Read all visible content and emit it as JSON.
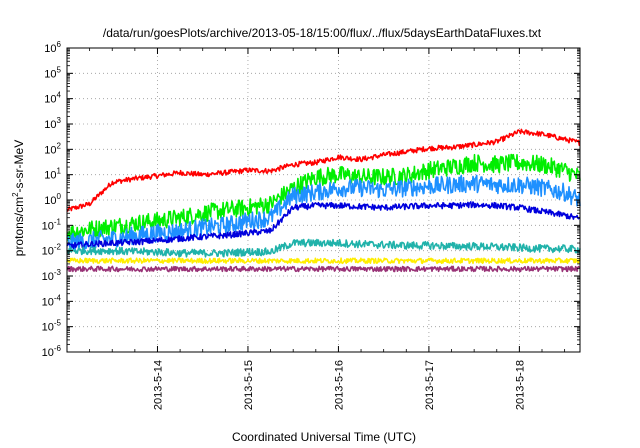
{
  "chart_data": {
    "type": "line",
    "title": "/data/run/goesPlots/archive/2013-05-18/15:00/flux/../flux/5daysEarthDataFluxes.txt",
    "xlabel": "Coordinated Universal Time (UTC)",
    "ylabel_main": "protons/cm",
    "ylabel_sup": "2",
    "ylabel_rest": "-s-sr-MeV",
    "x_ticks": [
      "2013-5-14",
      "2013-5-15",
      "2013-5-16",
      "2013-5-17",
      "2013-5-18"
    ],
    "x_tick_positions_days": [
      1,
      2,
      3,
      4,
      5
    ],
    "xlim_days": [
      0,
      5.67
    ],
    "y_scale": "log",
    "ylim": [
      1e-06,
      1000000.0
    ],
    "y_tick_exponents": [
      -6,
      -5,
      -4,
      -3,
      -2,
      -1,
      0,
      1,
      2,
      3,
      4,
      5,
      6
    ],
    "grid": true,
    "legend": "none",
    "x_days": [
      0,
      0.25,
      0.5,
      0.75,
      1.0,
      1.25,
      1.5,
      1.75,
      2.0,
      2.25,
      2.5,
      2.75,
      3.0,
      3.25,
      3.5,
      3.75,
      4.0,
      4.25,
      4.5,
      4.75,
      5.0,
      5.25,
      5.5,
      5.67
    ],
    "series": [
      {
        "color": "#ff0000",
        "noise": 0.1,
        "values": [
          0.4,
          0.7,
          5,
          7,
          9,
          12,
          10,
          12,
          15,
          14,
          25,
          30,
          50,
          40,
          60,
          80,
          110,
          120,
          150,
          200,
          500,
          400,
          250,
          180
        ]
      },
      {
        "color": "#00ee00",
        "noise": 0.35,
        "values": [
          0.05,
          0.07,
          0.09,
          0.12,
          0.15,
          0.2,
          0.3,
          0.4,
          0.5,
          0.7,
          3,
          8,
          10,
          8,
          8,
          9,
          15,
          20,
          30,
          25,
          30,
          25,
          15,
          8
        ]
      },
      {
        "color": "#1e90ff",
        "noise": 0.35,
        "values": [
          0.02,
          0.025,
          0.03,
          0.04,
          0.05,
          0.06,
          0.08,
          0.1,
          0.15,
          0.2,
          1.5,
          2,
          3,
          3,
          2.5,
          3,
          3.5,
          4,
          4.5,
          4,
          4,
          3,
          2,
          1
        ]
      },
      {
        "color": "#0000dd",
        "noise": 0.12,
        "values": [
          0.015,
          0.018,
          0.02,
          0.022,
          0.025,
          0.03,
          0.035,
          0.04,
          0.05,
          0.06,
          0.5,
          0.6,
          0.6,
          0.55,
          0.5,
          0.55,
          0.6,
          0.6,
          0.65,
          0.6,
          0.5,
          0.35,
          0.25,
          0.18
        ]
      },
      {
        "color": "#20b2aa",
        "noise": 0.15,
        "values": [
          0.01,
          0.01,
          0.01,
          0.009,
          0.009,
          0.008,
          0.008,
          0.008,
          0.009,
          0.009,
          0.02,
          0.02,
          0.02,
          0.018,
          0.017,
          0.016,
          0.016,
          0.015,
          0.015,
          0.014,
          0.013,
          0.012,
          0.012,
          0.011
        ]
      },
      {
        "color": "#ffee00",
        "noise": 0.1,
        "values": [
          0.004,
          0.004,
          0.004,
          0.004,
          0.004,
          0.004,
          0.004,
          0.004,
          0.004,
          0.004,
          0.004,
          0.004,
          0.004,
          0.004,
          0.004,
          0.004,
          0.004,
          0.004,
          0.004,
          0.004,
          0.004,
          0.004,
          0.004,
          0.004
        ]
      },
      {
        "color": "#993377",
        "noise": 0.1,
        "values": [
          0.0019,
          0.0019,
          0.0019,
          0.0019,
          0.0019,
          0.0019,
          0.0019,
          0.0019,
          0.0019,
          0.0019,
          0.0019,
          0.0019,
          0.0019,
          0.0019,
          0.0019,
          0.0019,
          0.0019,
          0.0019,
          0.0019,
          0.0019,
          0.0019,
          0.0019,
          0.0019,
          0.0019
        ]
      }
    ]
  }
}
